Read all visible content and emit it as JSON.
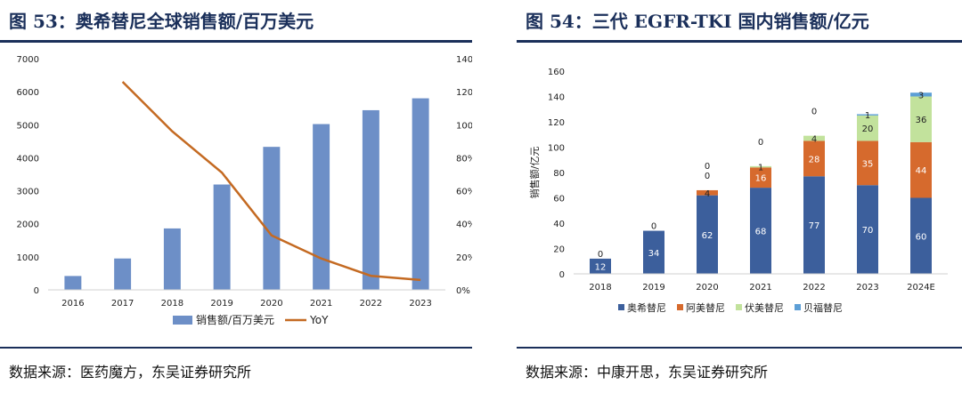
{
  "left": {
    "figure_title": "图 53：奥希替尼全球销售额/百万美元",
    "source": "数据来源：医药魔方，东吴证券研究所",
    "legend": {
      "bar": "销售额/百万美元",
      "line": "YoY"
    }
  },
  "right": {
    "figure_title": "图 54：三代 EGFR-TKI 国内销售额/亿元",
    "source": "数据来源：中康开思，东吴证券研究所"
  },
  "colors": {
    "title": "#1a2f5a",
    "left_bar": "#6d8fc7",
    "left_line": "#c46a22",
    "osimertinib": "#3c5f9c",
    "almonertinib": "#d66a2d",
    "furmonertinib": "#c2e29c",
    "befotertinib": "#5d9fd6"
  },
  "chart_data": [
    {
      "type": "bar",
      "title": "奥希替尼全球销售额/百万美元",
      "categories": [
        "2016",
        "2017",
        "2018",
        "2019",
        "2020",
        "2021",
        "2022",
        "2023"
      ],
      "series": [
        {
          "name": "销售额/百万美元",
          "axis": "left",
          "values": [
            420,
            950,
            1860,
            3190,
            4330,
            5020,
            5440,
            5800
          ]
        },
        {
          "name": "YoY",
          "type": "line",
          "axis": "right",
          "values": [
            null,
            126,
            96,
            71,
            33,
            19,
            8.5,
            6
          ]
        }
      ],
      "y_left": {
        "range": [
          0,
          7000
        ],
        "ticks": [
          "0",
          "1000",
          "2000",
          "3000",
          "4000",
          "5000",
          "6000",
          "7000"
        ]
      },
      "y_right": {
        "range": [
          0,
          140
        ],
        "ticks": [
          "0%",
          "20%",
          "40%",
          "60%",
          "80%",
          "100%",
          "120%",
          "140%"
        ]
      },
      "legend_position": "bottom"
    },
    {
      "type": "bar",
      "stacked": true,
      "title": "三代 EGFR-TKI 国内销售额/亿元",
      "ylabel": "销售额/亿元",
      "categories": [
        "2018",
        "2019",
        "2020",
        "2021",
        "2022",
        "2023",
        "2024E"
      ],
      "series": [
        {
          "name": "奥希替尼",
          "values": [
            12,
            34,
            62,
            68,
            77,
            70,
            60
          ],
          "labels": [
            "12",
            "34",
            "62",
            "68",
            "77",
            "70",
            "60"
          ]
        },
        {
          "name": "阿美替尼",
          "values": [
            0,
            0,
            4,
            16,
            28,
            35,
            44
          ],
          "labels": [
            "0",
            "0",
            "4",
            "16",
            "28",
            "35",
            "44"
          ]
        },
        {
          "name": "伏美替尼",
          "values": [
            0,
            0,
            0,
            1,
            4,
            20,
            36
          ],
          "labels": [
            "",
            "",
            "0",
            "1",
            "4",
            "20",
            "36"
          ]
        },
        {
          "name": "贝福替尼",
          "values": [
            0,
            0,
            0,
            0,
            0,
            1,
            3
          ],
          "labels": [
            "",
            "",
            "0",
            "0",
            "0",
            "1",
            "3"
          ]
        }
      ],
      "y_range": [
        0,
        160
      ],
      "y_ticks": [
        "0",
        "20",
        "40",
        "60",
        "80",
        "100",
        "120",
        "140",
        "160"
      ],
      "legend_position": "bottom"
    }
  ]
}
